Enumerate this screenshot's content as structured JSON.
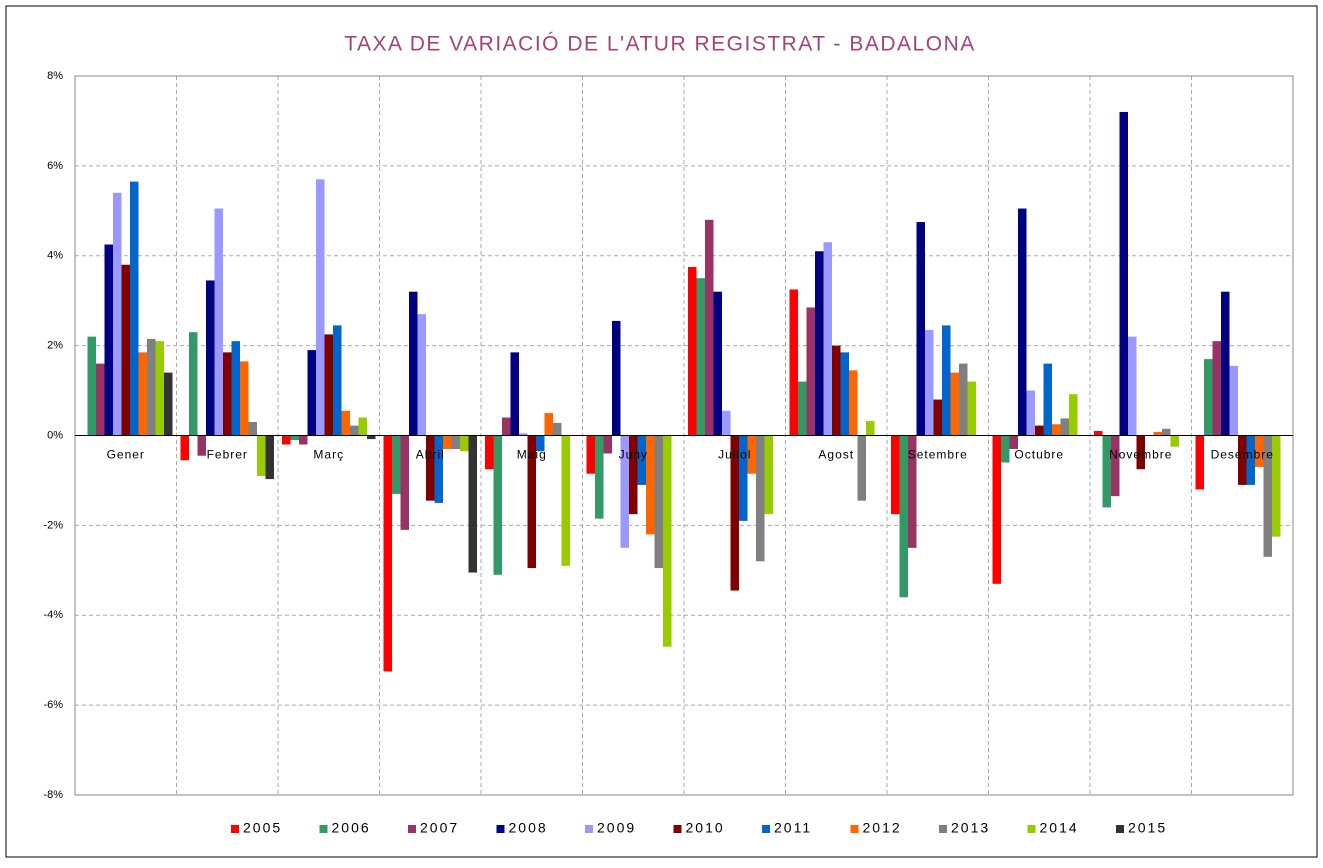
{
  "chart_data": {
    "type": "bar",
    "title": "TAXA DE VARIACIÓ DE L'ATUR REGISTRAT - BADALONA",
    "categories": [
      "Gener",
      "Febrer",
      "Març",
      "Abril",
      "Maig",
      "Juny",
      "Juliol",
      "Agost",
      "Setembre",
      "Octubre",
      "Novembre",
      "Desembre"
    ],
    "series": [
      {
        "name": "2005",
        "color": "#ff0000",
        "values": [
          0,
          -0.55,
          -0.2,
          -5.25,
          -0.75,
          -0.85,
          3.75,
          3.25,
          -1.75,
          -3.3,
          0.1,
          -1.2
        ]
      },
      {
        "name": "2006",
        "color": "#339966",
        "values": [
          2.2,
          2.3,
          -0.1,
          -1.3,
          -3.1,
          -1.85,
          3.5,
          1.2,
          -3.6,
          -0.6,
          -1.6,
          1.7
        ]
      },
      {
        "name": "2007",
        "color": "#993366",
        "values": [
          1.6,
          -0.45,
          -0.2,
          -2.1,
          0.4,
          -0.4,
          4.8,
          2.85,
          -2.5,
          -0.3,
          -1.35,
          2.1
        ]
      },
      {
        "name": "2008",
        "color": "#000080",
        "values": [
          4.25,
          3.45,
          1.9,
          3.2,
          1.85,
          2.55,
          3.2,
          4.1,
          4.75,
          5.05,
          7.2,
          3.2
        ]
      },
      {
        "name": "2009",
        "color": "#9999ff",
        "values": [
          5.4,
          5.05,
          5.7,
          2.7,
          0.05,
          -2.5,
          0.55,
          4.3,
          2.35,
          1.0,
          2.2,
          1.55
        ]
      },
      {
        "name": "2010",
        "color": "#800000",
        "values": [
          3.8,
          1.85,
          2.25,
          -1.45,
          -2.95,
          -1.75,
          -3.45,
          2.0,
          0.8,
          0.22,
          -0.75,
          -1.1
        ]
      },
      {
        "name": "2011",
        "color": "#0066cc",
        "values": [
          5.65,
          2.1,
          2.45,
          -1.5,
          -0.35,
          -1.1,
          -1.9,
          1.85,
          2.45,
          1.6,
          0.0,
          -1.1
        ]
      },
      {
        "name": "2012",
        "color": "#ff6600",
        "values": [
          1.85,
          1.65,
          0.55,
          -0.3,
          0.5,
          -2.2,
          -0.85,
          1.45,
          1.4,
          0.25,
          0.08,
          -0.7
        ]
      },
      {
        "name": "2013",
        "color": "#808080",
        "values": [
          2.15,
          0.3,
          0.22,
          -0.3,
          0.28,
          -2.95,
          -2.8,
          -1.45,
          1.6,
          0.38,
          0.15,
          -2.7
        ]
      },
      {
        "name": "2014",
        "color": "#99cc00",
        "values": [
          2.1,
          -0.9,
          0.4,
          -0.35,
          -2.9,
          -4.7,
          -1.75,
          0.32,
          1.2,
          0.92,
          -0.25,
          -2.25
        ]
      },
      {
        "name": "2015",
        "color": "#333333",
        "values": [
          1.4,
          -0.97,
          -0.08,
          -3.05,
          null,
          null,
          null,
          null,
          null,
          null,
          null,
          null
        ]
      }
    ],
    "ylim": [
      -8,
      8
    ],
    "yticks": [
      {
        "value": -8,
        "label": "-8%"
      },
      {
        "value": -6,
        "label": "-6%"
      },
      {
        "value": -4,
        "label": "-4%"
      },
      {
        "value": -2,
        "label": "-2%"
      },
      {
        "value": 0,
        "label": "0%"
      },
      {
        "value": 2,
        "label": "2%"
      },
      {
        "value": 4,
        "label": "4%"
      },
      {
        "value": 6,
        "label": "6%"
      },
      {
        "value": 8,
        "label": "8%"
      }
    ],
    "grid": true,
    "legend": "bottom"
  }
}
